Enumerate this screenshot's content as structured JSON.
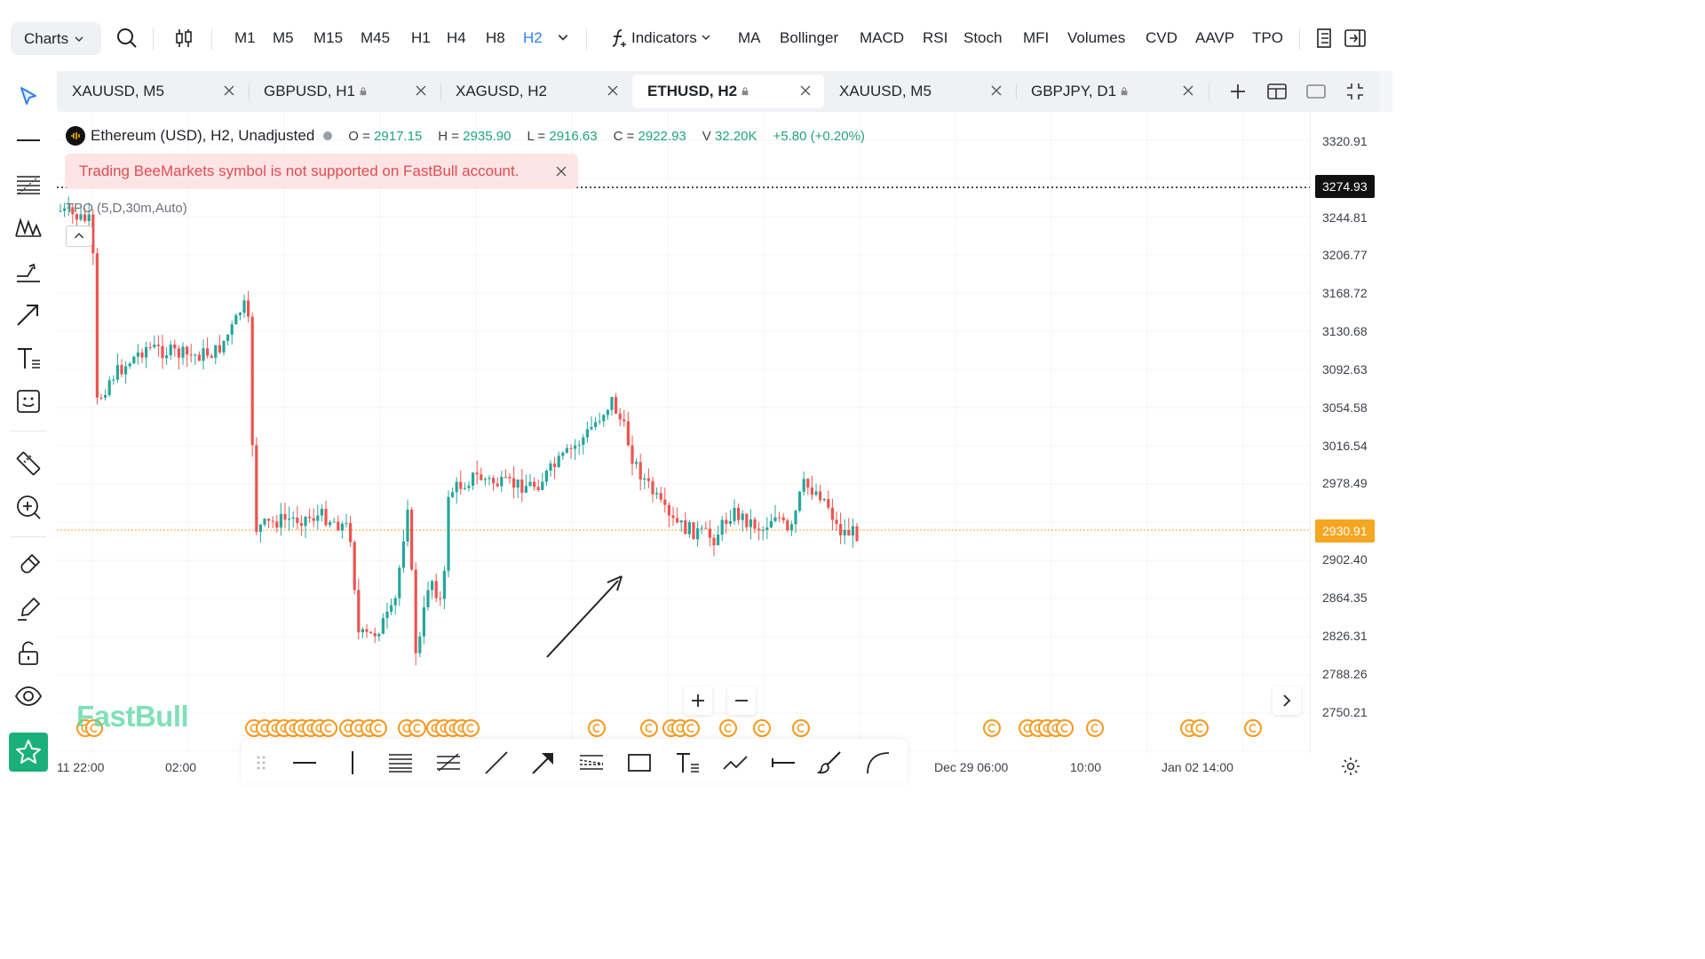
{
  "toolbar": {
    "charts_label": "Charts",
    "timeframes": [
      "M1",
      "M5",
      "M15",
      "M45",
      "H1",
      "H4",
      "H8",
      "H2"
    ],
    "active_timeframe": "H2",
    "indicators_label": "Indicators",
    "indicator_shortcuts": [
      "MA",
      "Bollinger",
      "MACD",
      "RSI",
      "Stoch",
      "MFI",
      "Volumes",
      "CVD",
      "AAVP",
      "TPO"
    ]
  },
  "tabs": [
    {
      "label": "XAUUSD, M5",
      "locked": false,
      "active": false
    },
    {
      "label": "GBPUSD, H1",
      "locked": true,
      "active": false
    },
    {
      "label": "XAGUSD, H2",
      "locked": false,
      "active": false
    },
    {
      "label": "ETHUSD, H2",
      "locked": true,
      "active": true
    },
    {
      "label": "XAUUSD, M5",
      "locked": false,
      "active": false
    },
    {
      "label": "GBPJPY, D1",
      "locked": true,
      "active": false
    }
  ],
  "legend": {
    "symbol": "Ethereum (USD), H2, Unadjusted",
    "o_label": "O =",
    "o": "2917.15",
    "h_label": "H =",
    "h": "2935.90",
    "l_label": "L =",
    "l": "2916.63",
    "c_label": "C =",
    "c": "2922.93",
    "v_label": "V",
    "v": "32.20K",
    "change": "+5.80 (+0.20%)"
  },
  "warning": "Trading BeeMarkets symbol is not supported on FastBull account.",
  "tpo_label": "TPO (5,D,30m,Auto)",
  "watermark": "FastBull",
  "price_axis": {
    "labels": [
      "3320.91",
      "3244.81",
      "3206.77",
      "3168.72",
      "3130.68",
      "3092.63",
      "3054.58",
      "3016.54",
      "2978.49",
      "2902.40",
      "2864.35",
      "2826.31",
      "2788.26",
      "2750.21"
    ],
    "high_tag": "3274.93",
    "current_tag": "2930.91"
  },
  "time_axis": [
    "11 22:00",
    "02:00",
    "Dec 29 06:00",
    "10:00",
    "Jan 02 14:00"
  ],
  "colors": {
    "up": "#26a69a",
    "down": "#ef5350",
    "accent": "#2f7ef5",
    "current_price": "#f5a623",
    "warning_bg": "#fde5e6",
    "warning_text": "#e04b52",
    "brand": "#1bb07a"
  }
}
